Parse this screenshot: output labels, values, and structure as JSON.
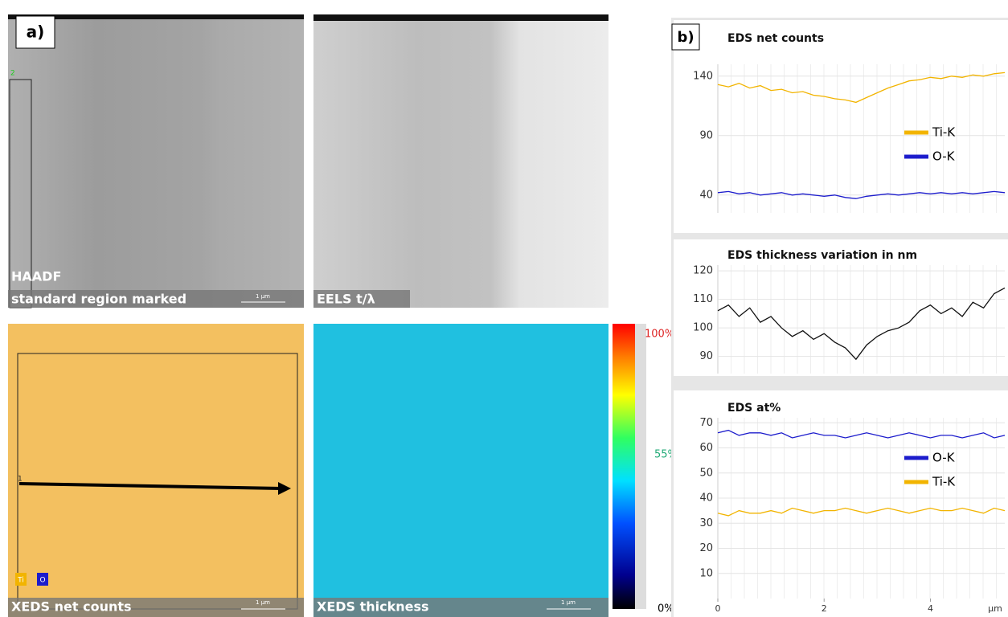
{
  "panel_labels": {
    "a": "a)",
    "b": "b)"
  },
  "images": [
    {
      "caption": "HAADF",
      "subcaption": "standard region marked",
      "scale_bar": "1 µm",
      "marker": "2"
    },
    {
      "caption": "EELS t/λ"
    },
    {
      "caption": "XEDS net counts",
      "scale_bar": "1 µm",
      "marker": "1",
      "legend": [
        "Ti",
        "O"
      ]
    },
    {
      "caption": "XEDS thickness",
      "scale_bar": "1 µm"
    }
  ],
  "colorbar": {
    "labels": [
      "100%",
      "55%",
      "0%"
    ]
  },
  "chart_data": [
    {
      "type": "line",
      "title": "EDS net counts",
      "x": [
        0,
        0.2,
        0.4,
        0.6,
        0.8,
        1,
        1.2,
        1.4,
        1.6,
        1.8,
        2,
        2.2,
        2.4,
        2.6,
        2.8,
        3,
        3.2,
        3.4,
        3.6,
        3.8,
        4,
        4.2,
        4.4,
        4.6,
        4.8,
        5,
        5.2,
        5.4
      ],
      "xlim": [
        0,
        5.4
      ],
      "ylim": [
        25,
        150
      ],
      "yticks": [
        40,
        90,
        140
      ],
      "grid": true,
      "legend": "right",
      "series": [
        {
          "name": "Ti-K",
          "color": "#f2b400",
          "values": [
            133,
            131,
            134,
            130,
            132,
            128,
            129,
            126,
            127,
            124,
            123,
            121,
            120,
            118,
            122,
            126,
            130,
            133,
            136,
            137,
            139,
            138,
            140,
            139,
            141,
            140,
            142,
            143
          ]
        },
        {
          "name": "O-K",
          "color": "#1c1ccc",
          "values": [
            42,
            43,
            41,
            42,
            40,
            41,
            42,
            40,
            41,
            40,
            39,
            40,
            38,
            37,
            39,
            40,
            41,
            40,
            41,
            42,
            41,
            42,
            41,
            42,
            41,
            42,
            43,
            42
          ]
        }
      ]
    },
    {
      "type": "line",
      "title": "EDS thickness variation in nm",
      "x": [
        0,
        0.2,
        0.4,
        0.6,
        0.8,
        1,
        1.2,
        1.4,
        1.6,
        1.8,
        2,
        2.2,
        2.4,
        2.6,
        2.8,
        3,
        3.2,
        3.4,
        3.6,
        3.8,
        4,
        4.2,
        4.4,
        4.6,
        4.8,
        5,
        5.2,
        5.4
      ],
      "xlim": [
        0,
        5.4
      ],
      "ylim": [
        84,
        122
      ],
      "yticks": [
        90,
        100,
        110,
        120
      ],
      "grid": true,
      "series": [
        {
          "color": "#111111",
          "values": [
            106,
            108,
            104,
            107,
            102,
            104,
            100,
            97,
            99,
            96,
            98,
            95,
            93,
            89,
            94,
            97,
            99,
            100,
            102,
            106,
            108,
            105,
            107,
            104,
            109,
            107,
            112,
            114
          ]
        }
      ]
    },
    {
      "type": "line",
      "title": "EDS at%",
      "x": [
        0,
        0.2,
        0.4,
        0.6,
        0.8,
        1,
        1.2,
        1.4,
        1.6,
        1.8,
        2,
        2.2,
        2.4,
        2.6,
        2.8,
        3,
        3.2,
        3.4,
        3.6,
        3.8,
        4,
        4.2,
        4.4,
        4.6,
        4.8,
        5,
        5.2,
        5.4
      ],
      "xlim": [
        0,
        5.4
      ],
      "ylim": [
        0,
        72
      ],
      "yticks": [
        10,
        20,
        30,
        40,
        50,
        60,
        70
      ],
      "xticks": [
        0,
        2,
        4
      ],
      "xlabel": "µm",
      "grid": true,
      "legend": "right",
      "series": [
        {
          "name": "O-K",
          "color": "#1c1ccc",
          "values": [
            66,
            67,
            65,
            66,
            66,
            65,
            66,
            64,
            65,
            66,
            65,
            65,
            64,
            65,
            66,
            65,
            64,
            65,
            66,
            65,
            64,
            65,
            65,
            64,
            65,
            66,
            64,
            65
          ]
        },
        {
          "name": "Ti-K",
          "color": "#f2b400",
          "values": [
            34,
            33,
            35,
            34,
            34,
            35,
            34,
            36,
            35,
            34,
            35,
            35,
            36,
            35,
            34,
            35,
            36,
            35,
            34,
            35,
            36,
            35,
            35,
            36,
            35,
            34,
            36,
            35
          ]
        }
      ]
    }
  ]
}
